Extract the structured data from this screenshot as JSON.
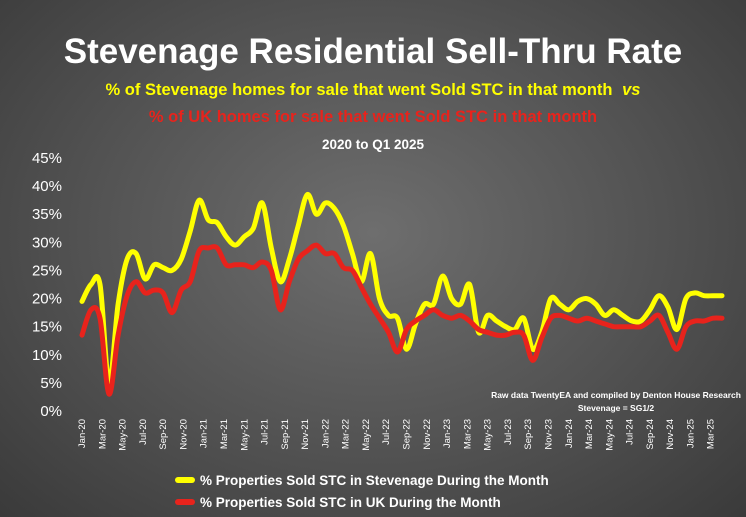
{
  "chart_data": {
    "type": "line",
    "title": "Stevenage Residential Sell-Thru Rate",
    "subtitle_line1": "% of Stevenage homes for sale that went Sold STC in that month",
    "subtitle_vs": "vs",
    "subtitle_line2": "% of UK homes for sale that went Sold STC in that month",
    "period": "2020 to Q1 2025",
    "annotation_line1": "Raw data TwentyEA and compiled by Denton House Research",
    "annotation_line2": "Stevenage  = SG1/2",
    "ylim": [
      0,
      45
    ],
    "yticks": [
      "0%",
      "5%",
      "10%",
      "15%",
      "20%",
      "25%",
      "30%",
      "35%",
      "40%",
      "45%"
    ],
    "xtick_labels": [
      "Jan-20",
      "Mar-20",
      "May-20",
      "Jul-20",
      "Sep-20",
      "Nov-20",
      "Jan-21",
      "Mar-21",
      "May-21",
      "Jul-21",
      "Sep-21",
      "Nov-21",
      "Jan-22",
      "Mar-22",
      "May-22",
      "Jul-22",
      "Sep-22",
      "Nov-22",
      "Jan-23",
      "Mar-23",
      "May-23",
      "Jul-23",
      "Sep-23",
      "Nov-23",
      "Jan-24",
      "Mar-24",
      "May-24",
      "Jul-24",
      "Sep-24",
      "Nov-24",
      "Jan-25",
      "Mar-25"
    ],
    "legend_position": "bottom",
    "series": [
      {
        "name": "% Properties Sold STC in Stevenage During the Month",
        "color": "#ffff00",
        "values": [
          19.5,
          22.5,
          22.5,
          5,
          19,
          27,
          28,
          23.5,
          26,
          25.5,
          25,
          27,
          32,
          37.5,
          34,
          33.5,
          31,
          29.5,
          31,
          32.5,
          37,
          29,
          23,
          27,
          33,
          38.5,
          35,
          37,
          36,
          33,
          28,
          23,
          28,
          20,
          17,
          16.5,
          11,
          15.5,
          19,
          19,
          24,
          20,
          19,
          22.5,
          14,
          17,
          16,
          15,
          14.5,
          16.5,
          11,
          14,
          20,
          19,
          18,
          19.5,
          20,
          19,
          17,
          18,
          17,
          16,
          16,
          18,
          20.5,
          18.5,
          14.5,
          20,
          21,
          20.5,
          20.5,
          20.5
        ]
      },
      {
        "name": "% Properties Sold STC in UK During the Month",
        "color": "#e8231c",
        "values": [
          13.5,
          18,
          16.5,
          3,
          13.5,
          20.5,
          23,
          21,
          21.5,
          21,
          17.5,
          21.5,
          23,
          28.5,
          29,
          29,
          26,
          26,
          26,
          25.5,
          26.5,
          25,
          18,
          23,
          27,
          28.5,
          29.5,
          28,
          28,
          25.5,
          25,
          22,
          19,
          16.5,
          14,
          10.5,
          14.5,
          16,
          17,
          18,
          17,
          16.5,
          17,
          16,
          14.5,
          14,
          13.5,
          13.5,
          14,
          13.5,
          9,
          13,
          16.5,
          17,
          16.5,
          16,
          16.5,
          16,
          15.5,
          15,
          15,
          15,
          15,
          16,
          17,
          14,
          11,
          15,
          16,
          16,
          16.5,
          16.5
        ]
      }
    ]
  }
}
